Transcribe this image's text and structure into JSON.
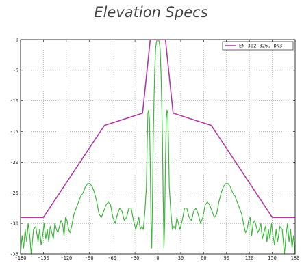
{
  "chart_data": {
    "type": "line",
    "title": "Elevation Specs",
    "xlim": [
      -180,
      180
    ],
    "ylim": [
      -35,
      0
    ],
    "x_ticks": [
      -180,
      -150,
      -120,
      -90,
      -60,
      -30,
      0,
      30,
      60,
      90,
      120,
      150,
      180
    ],
    "y_ticks": [
      0,
      -5,
      -10,
      -15,
      -20,
      -25,
      -30,
      -35
    ],
    "grid": true,
    "legend_position": "top-right",
    "series": [
      {
        "name": "EN 302 326, DN3",
        "color": "#b03aa6",
        "x": [
          -180,
          -150,
          -70,
          -20,
          -10,
          10,
          20,
          70,
          150,
          180
        ],
        "y": [
          -29,
          -29,
          -14,
          -12,
          0,
          0,
          -12,
          -14,
          -29,
          -29
        ]
      },
      {
        "color": "#3db83d",
        "x": [
          -180,
          -178,
          -176,
          -174,
          -172,
          -170,
          -168,
          -166,
          -163,
          -160,
          -157,
          -155,
          -153,
          -151,
          -149,
          -147,
          -145,
          -143,
          -141,
          -139,
          -137,
          -135,
          -133,
          -131,
          -129,
          -127,
          -125,
          -123,
          -121,
          -119,
          -117,
          -115,
          -113,
          -110,
          -107,
          -104,
          -101,
          -98,
          -95,
          -92,
          -89,
          -86,
          -83,
          -80,
          -77,
          -74,
          -71,
          -68,
          -65,
          -62,
          -59,
          -56,
          -53,
          -50,
          -47,
          -44,
          -41,
          -38,
          -35,
          -32,
          -29,
          -27,
          -25,
          -23,
          -21,
          -19,
          -17,
          -15,
          -14,
          -13,
          -12,
          -11,
          -10,
          -9,
          -8,
          -7,
          -6,
          -5,
          -4,
          -3,
          -2,
          -1,
          0,
          1,
          2,
          3,
          4,
          5,
          6,
          7,
          8,
          9,
          10,
          11,
          12,
          13,
          14,
          15,
          17,
          19,
          21,
          23,
          25,
          27,
          29,
          32,
          35,
          38,
          41,
          44,
          47,
          50,
          53,
          56,
          59,
          62,
          65,
          68,
          71,
          74,
          77,
          80,
          83,
          86,
          89,
          92,
          95,
          98,
          101,
          104,
          107,
          110,
          113,
          115,
          117,
          119,
          121,
          123,
          125,
          127,
          129,
          131,
          133,
          135,
          137,
          139,
          141,
          143,
          145,
          147,
          149,
          151,
          153,
          155,
          157,
          160,
          163,
          166,
          168,
          170,
          172,
          174,
          176,
          178,
          180
        ],
        "y": [
          -35,
          -32,
          -34,
          -31,
          -33,
          -30,
          -32,
          -35,
          -31,
          -30.5,
          -33,
          -31,
          -33.5,
          -32,
          -30,
          -32.5,
          -31,
          -33,
          -30.5,
          -31.5,
          -32.5,
          -30,
          -31,
          -31.5,
          -30.5,
          -29.5,
          -30,
          -32,
          -29,
          -29.5,
          -31,
          -31.5,
          -30.5,
          -28.5,
          -27.5,
          -26.5,
          -25.5,
          -25,
          -24,
          -23.5,
          -23.5,
          -24,
          -25,
          -26.5,
          -28.5,
          -29,
          -28,
          -27,
          -26.5,
          -27,
          -29,
          -30,
          -28.5,
          -27.5,
          -28,
          -29.5,
          -29,
          -27.5,
          -27.5,
          -29.5,
          -31,
          -30,
          -29,
          -31,
          -30.5,
          -31,
          -28,
          -24,
          -17,
          -12,
          -11.5,
          -13,
          -20,
          -30,
          -34,
          -26,
          -16,
          -10,
          -5,
          -1.5,
          -0.5,
          0,
          0,
          0,
          -0.5,
          -1.5,
          -5,
          -10,
          -16,
          -26,
          -34,
          -30,
          -20,
          -13,
          -11.5,
          -12,
          -17,
          -24,
          -28,
          -31,
          -30.5,
          -31,
          -29,
          -30,
          -31,
          -29.5,
          -27.5,
          -27.5,
          -29,
          -29.5,
          -28,
          -27.5,
          -28.5,
          -30,
          -29,
          -27,
          -26.5,
          -27,
          -28,
          -29,
          -28.5,
          -26.5,
          -25,
          -24,
          -23.5,
          -23.5,
          -24,
          -25,
          -25.5,
          -26.5,
          -27.5,
          -28.5,
          -30.5,
          -31.5,
          -31,
          -29.5,
          -29,
          -32,
          -30,
          -29.5,
          -30.5,
          -31.5,
          -31,
          -30,
          -32.5,
          -31.5,
          -30.5,
          -33,
          -31,
          -32.5,
          -30,
          -32,
          -33.5,
          -31,
          -33,
          -30.5,
          -31,
          -35,
          -32,
          -30,
          -33,
          -31,
          -34,
          -32,
          -35
        ]
      }
    ]
  }
}
